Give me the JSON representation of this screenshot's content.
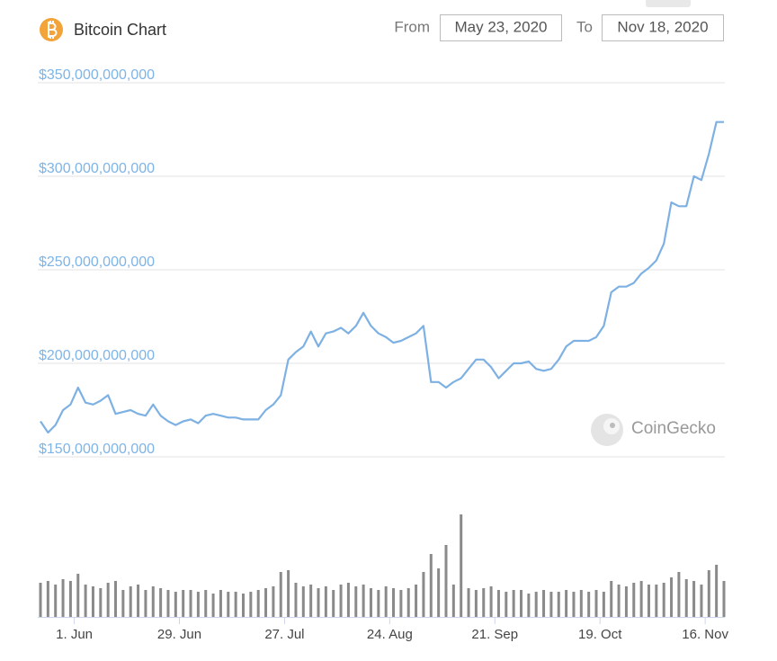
{
  "header": {
    "title": "Bitcoin Chart",
    "from_label": "From",
    "from_date": "May 23, 2020",
    "to_label": "To",
    "to_date": "Nov 18, 2020"
  },
  "watermark": "CoinGecko",
  "chart_data": {
    "type": "line",
    "color": "#7eb1e3",
    "volume_color": "#8a8a8a",
    "grid": true,
    "x": [
      "2020-05-23",
      "2020-05-25",
      "2020-05-27",
      "2020-05-29",
      "2020-05-31",
      "2020-06-02",
      "2020-06-04",
      "2020-06-06",
      "2020-06-08",
      "2020-06-10",
      "2020-06-12",
      "2020-06-14",
      "2020-06-16",
      "2020-06-18",
      "2020-06-20",
      "2020-06-22",
      "2020-06-24",
      "2020-06-26",
      "2020-06-28",
      "2020-06-30",
      "2020-07-02",
      "2020-07-04",
      "2020-07-06",
      "2020-07-08",
      "2020-07-10",
      "2020-07-12",
      "2020-07-14",
      "2020-07-16",
      "2020-07-18",
      "2020-07-20",
      "2020-07-22",
      "2020-07-24",
      "2020-07-26",
      "2020-07-28",
      "2020-07-30",
      "2020-08-01",
      "2020-08-03",
      "2020-08-05",
      "2020-08-07",
      "2020-08-09",
      "2020-08-11",
      "2020-08-13",
      "2020-08-15",
      "2020-08-17",
      "2020-08-19",
      "2020-08-21",
      "2020-08-23",
      "2020-08-25",
      "2020-08-27",
      "2020-08-29",
      "2020-08-31",
      "2020-09-02",
      "2020-09-04",
      "2020-09-06",
      "2020-09-08",
      "2020-09-10",
      "2020-09-12",
      "2020-09-14",
      "2020-09-16",
      "2020-09-18",
      "2020-09-20",
      "2020-09-22",
      "2020-09-24",
      "2020-09-26",
      "2020-09-28",
      "2020-09-30",
      "2020-10-02",
      "2020-10-04",
      "2020-10-06",
      "2020-10-08",
      "2020-10-10",
      "2020-10-12",
      "2020-10-14",
      "2020-10-16",
      "2020-10-18",
      "2020-10-20",
      "2020-10-22",
      "2020-10-24",
      "2020-10-26",
      "2020-10-28",
      "2020-10-30",
      "2020-11-01",
      "2020-11-03",
      "2020-11-05",
      "2020-11-07",
      "2020-11-09",
      "2020-11-11",
      "2020-11-13",
      "2020-11-15",
      "2020-11-17",
      "2020-11-19",
      "2020-11-21"
    ],
    "values": [
      169000000000.0,
      163000000000.0,
      167000000000.0,
      175000000000.0,
      178000000000.0,
      187000000000.0,
      179000000000.0,
      178000000000.0,
      180000000000.0,
      183000000000.0,
      173000000000.0,
      174000000000.0,
      175000000000.0,
      173000000000.0,
      172000000000.0,
      178000000000.0,
      172000000000.0,
      169000000000.0,
      167000000000.0,
      169000000000.0,
      170000000000.0,
      168000000000.0,
      172000000000.0,
      173000000000.0,
      172000000000.0,
      171000000000.0,
      171000000000.0,
      170000000000.0,
      170000000000.0,
      170000000000.0,
      175000000000.0,
      178000000000.0,
      183000000000.0,
      202000000000.0,
      206000000000.0,
      209000000000.0,
      217000000000.0,
      209000000000.0,
      216000000000.0,
      217000000000.0,
      219000000000.0,
      216000000000.0,
      220000000000.0,
      227000000000.0,
      220000000000.0,
      216000000000.0,
      214000000000.0,
      211000000000.0,
      212000000000.0,
      214000000000.0,
      216000000000.0,
      220000000000.0,
      190000000000.0,
      190000000000.0,
      187000000000.0,
      190000000000.0,
      192000000000.0,
      197000000000.0,
      202000000000.0,
      202000000000.0,
      198000000000.0,
      192000000000.0,
      196000000000.0,
      200000000000.0,
      200000000000.0,
      201000000000.0,
      197000000000.0,
      196000000000.0,
      197000000000.0,
      202000000000.0,
      209000000000.0,
      212000000000.0,
      212000000000.0,
      212000000000.0,
      214000000000.0,
      220000000000.0,
      238000000000.0,
      241000000000.0,
      241000000000.0,
      243000000000.0,
      248000000000.0,
      251000000000.0,
      255000000000.0,
      264000000000.0,
      286000000000.0,
      284000000000.0,
      284000000000.0,
      300000000000.0,
      298000000000.0,
      312000000000.0,
      329000000000.0,
      329000000000.0
    ],
    "volumes": [
      38000000000.0,
      40000000000.0,
      36000000000.0,
      42000000000.0,
      40000000000.0,
      48000000000.0,
      36000000000.0,
      34000000000.0,
      32000000000.0,
      38000000000.0,
      40000000000.0,
      30000000000.0,
      34000000000.0,
      36000000000.0,
      30000000000.0,
      34000000000.0,
      32000000000.0,
      30000000000.0,
      28000000000.0,
      30000000000.0,
      30000000000.0,
      28000000000.0,
      30000000000.0,
      26000000000.0,
      30000000000.0,
      28000000000.0,
      28000000000.0,
      26000000000.0,
      28000000000.0,
      30000000000.0,
      32000000000.0,
      34000000000.0,
      50000000000.0,
      52000000000.0,
      38000000000.0,
      34000000000.0,
      36000000000.0,
      32000000000.0,
      34000000000.0,
      30000000000.0,
      36000000000.0,
      38000000000.0,
      34000000000.0,
      36000000000.0,
      32000000000.0,
      30000000000.0,
      34000000000.0,
      32000000000.0,
      30000000000.0,
      32000000000.0,
      36000000000.0,
      50000000000.0,
      70000000000.0,
      54000000000.0,
      80000000000.0,
      36000000000.0,
      114000000000.0,
      32000000000.0,
      30000000000.0,
      32000000000.0,
      34000000000.0,
      30000000000.0,
      28000000000.0,
      30000000000.0,
      30000000000.0,
      26000000000.0,
      28000000000.0,
      30000000000.0,
      28000000000.0,
      28000000000.0,
      30000000000.0,
      28000000000.0,
      30000000000.0,
      28000000000.0,
      30000000000.0,
      28000000000.0,
      40000000000.0,
      36000000000.0,
      34000000000.0,
      38000000000.0,
      40000000000.0,
      36000000000.0,
      36000000000.0,
      38000000000.0,
      44000000000.0,
      50000000000.0,
      42000000000.0,
      40000000000.0,
      36000000000.0,
      52000000000.0,
      58000000000.0,
      40000000000.0
    ],
    "ylim": [
      150000000000.0,
      350000000000.0
    ],
    "yticks": [
      {
        "value": 150000000000.0,
        "label": "$150,000,000,000"
      },
      {
        "value": 200000000000.0,
        "label": "$200,000,000,000"
      },
      {
        "value": 250000000000.0,
        "label": "$250,000,000,000"
      },
      {
        "value": 300000000000.0,
        "label": "$300,000,000,000"
      },
      {
        "value": 350000000000.0,
        "label": "$350,000,000,000"
      }
    ],
    "xticks": [
      {
        "value": "2020-06-01",
        "label": "1. Jun"
      },
      {
        "value": "2020-06-29",
        "label": "29. Jun"
      },
      {
        "value": "2020-07-27",
        "label": "27. Jul"
      },
      {
        "value": "2020-08-24",
        "label": "24. Aug"
      },
      {
        "value": "2020-09-21",
        "label": "21. Sep"
      },
      {
        "value": "2020-10-19",
        "label": "19. Oct"
      },
      {
        "value": "2020-11-16",
        "label": "16. Nov"
      }
    ]
  }
}
